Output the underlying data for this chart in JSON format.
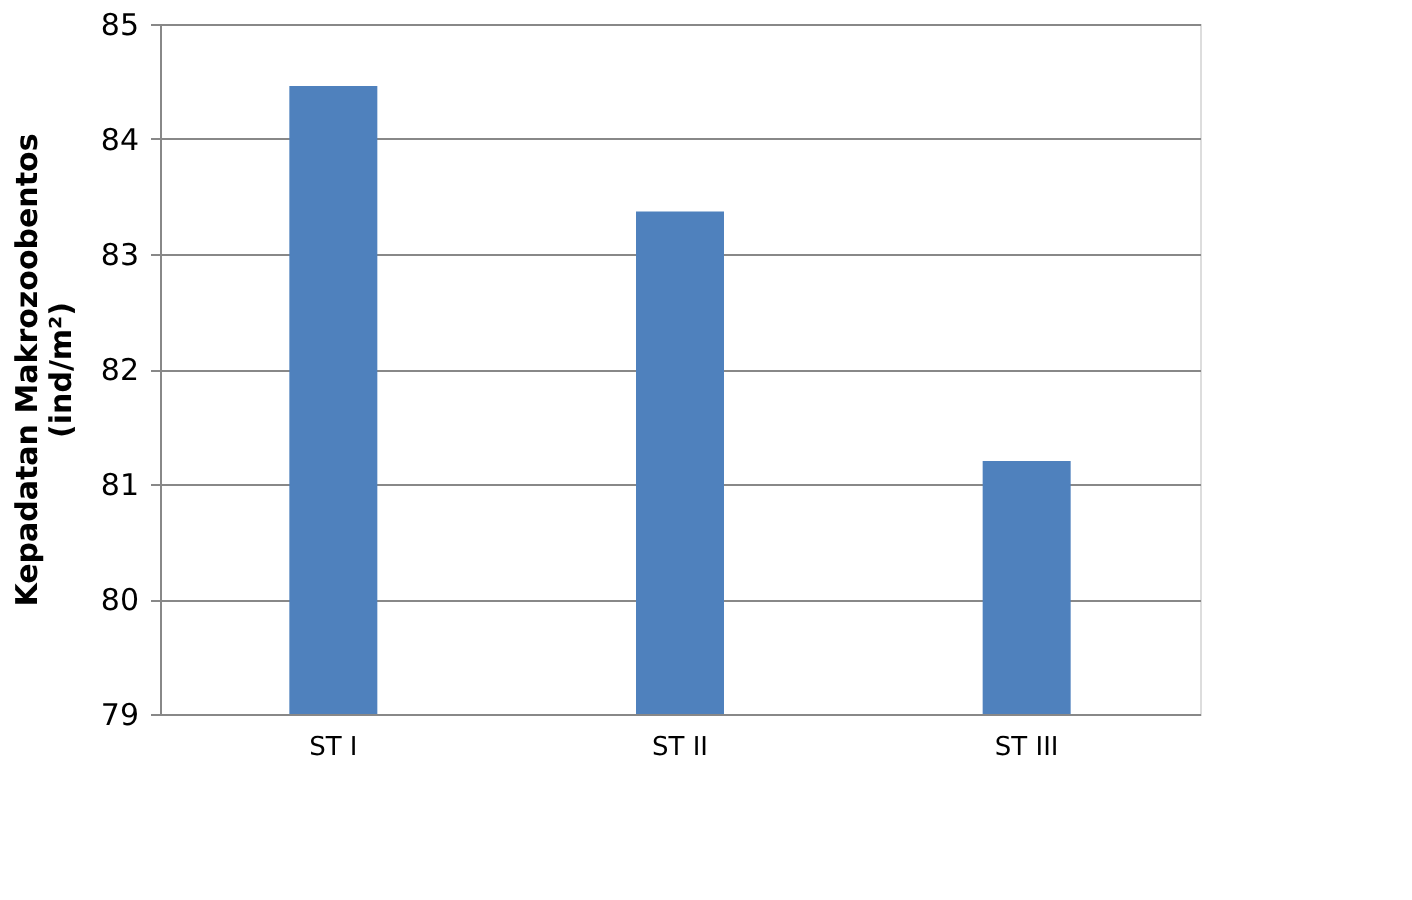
{
  "chart_data": {
    "type": "bar",
    "ylabel": "Kepadatan Makrozoobentos\n(ind/m²)",
    "categories": [
      "ST I",
      "ST II",
      "ST III"
    ],
    "values": [
      84.46,
      83.37,
      81.2
    ],
    "color": "#4f81bd",
    "ylim": [
      79,
      85
    ],
    "yticks": [
      79,
      80,
      81,
      82,
      83,
      84,
      85
    ],
    "grid": "y"
  }
}
